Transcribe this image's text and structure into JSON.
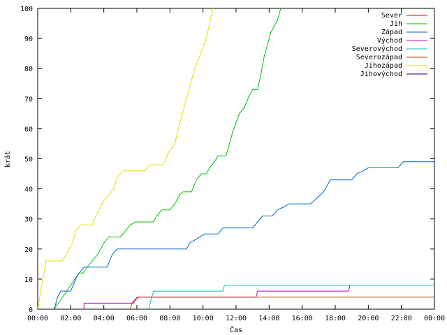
{
  "chart_data": {
    "type": "line",
    "xlabel": "Čas",
    "ylabel": "krát",
    "xlim": [
      0,
      24
    ],
    "ylim": [
      0,
      100
    ],
    "x_ticks": [
      {
        "v": 0,
        "label": "00:00"
      },
      {
        "v": 2,
        "label": "02:00"
      },
      {
        "v": 4,
        "label": "04:00"
      },
      {
        "v": 6,
        "label": "06:00"
      },
      {
        "v": 8,
        "label": "08:00"
      },
      {
        "v": 10,
        "label": "10:00"
      },
      {
        "v": 12,
        "label": "12:00"
      },
      {
        "v": 14,
        "label": "14:00"
      },
      {
        "v": 16,
        "label": "16:00"
      },
      {
        "v": 18,
        "label": "18:00"
      },
      {
        "v": 20,
        "label": "20:00"
      },
      {
        "v": 22,
        "label": "22:00"
      },
      {
        "v": 24,
        "label": "00:00"
      }
    ],
    "y_ticks": [
      0,
      10,
      20,
      30,
      40,
      50,
      60,
      70,
      80,
      90,
      100
    ],
    "legend_position": "top-right",
    "series": [
      {
        "name": "Sever",
        "color": "#ff0000",
        "points": []
      },
      {
        "name": "Jih",
        "color": "#00c000",
        "points": [
          [
            1.0,
            0
          ],
          [
            1.25,
            2
          ],
          [
            1.5,
            4
          ],
          [
            1.75,
            6
          ],
          [
            2.0,
            8
          ],
          [
            2.25,
            10
          ],
          [
            2.5,
            12
          ],
          [
            2.75,
            12
          ],
          [
            3.0,
            14
          ],
          [
            3.3,
            16
          ],
          [
            3.6,
            18
          ],
          [
            4.0,
            22
          ],
          [
            4.3,
            24
          ],
          [
            5.0,
            24
          ],
          [
            5.3,
            26
          ],
          [
            5.6,
            28
          ],
          [
            5.9,
            29
          ],
          [
            7.0,
            29
          ],
          [
            7.2,
            31
          ],
          [
            7.5,
            33
          ],
          [
            8.0,
            33
          ],
          [
            8.3,
            35
          ],
          [
            8.6,
            38
          ],
          [
            8.8,
            39
          ],
          [
            9.3,
            39
          ],
          [
            9.6,
            43
          ],
          [
            9.9,
            45
          ],
          [
            10.2,
            45
          ],
          [
            10.4,
            47
          ],
          [
            10.7,
            49
          ],
          [
            10.9,
            51
          ],
          [
            11.4,
            51
          ],
          [
            11.6,
            55
          ],
          [
            11.8,
            59
          ],
          [
            12.0,
            62
          ],
          [
            12.2,
            65
          ],
          [
            12.5,
            67
          ],
          [
            12.8,
            71
          ],
          [
            13.0,
            73
          ],
          [
            13.3,
            73
          ],
          [
            13.5,
            78
          ],
          [
            13.7,
            84
          ],
          [
            13.9,
            88
          ],
          [
            14.1,
            92
          ],
          [
            14.3,
            94
          ],
          [
            14.5,
            96
          ],
          [
            14.7,
            100
          ]
        ]
      },
      {
        "name": "Západ",
        "color": "#0066cc",
        "points": [
          [
            1.0,
            0
          ],
          [
            1.2,
            4
          ],
          [
            1.4,
            6
          ],
          [
            2.0,
            6
          ],
          [
            2.3,
            10
          ],
          [
            2.5,
            12
          ],
          [
            2.8,
            14
          ],
          [
            4.2,
            14
          ],
          [
            4.5,
            18
          ],
          [
            4.8,
            20
          ],
          [
            9.0,
            20
          ],
          [
            9.2,
            22
          ],
          [
            9.5,
            23
          ],
          [
            9.8,
            24
          ],
          [
            10.1,
            25
          ],
          [
            10.9,
            25
          ],
          [
            11.2,
            27
          ],
          [
            13.0,
            27
          ],
          [
            13.3,
            29
          ],
          [
            13.6,
            31
          ],
          [
            14.2,
            31
          ],
          [
            14.5,
            33
          ],
          [
            14.9,
            34
          ],
          [
            15.2,
            35
          ],
          [
            16.5,
            35
          ],
          [
            16.9,
            37
          ],
          [
            17.3,
            39
          ],
          [
            17.7,
            43
          ],
          [
            19.0,
            43
          ],
          [
            19.3,
            45
          ],
          [
            19.7,
            46
          ],
          [
            20.0,
            47
          ],
          [
            21.8,
            47
          ],
          [
            22.1,
            49
          ],
          [
            24.0,
            49
          ],
          [
            24.2,
            51
          ],
          [
            24.5,
            51
          ]
        ]
      },
      {
        "name": "Východ",
        "color": "#c000c0",
        "points": [
          [
            2.8,
            0
          ],
          [
            2.8,
            2
          ],
          [
            5.8,
            2
          ],
          [
            5.9,
            3
          ],
          [
            6.1,
            4
          ],
          [
            13.2,
            4
          ],
          [
            13.3,
            6
          ],
          [
            18.8,
            6
          ],
          [
            18.9,
            8
          ],
          [
            24.5,
            8
          ]
        ]
      },
      {
        "name": "Severovýchod",
        "color": "#00c0c0",
        "points": [
          [
            6.7,
            0
          ],
          [
            7.0,
            6
          ],
          [
            11.2,
            6
          ],
          [
            11.3,
            8
          ],
          [
            24.5,
            8
          ]
        ]
      },
      {
        "name": "Severozápad",
        "color": "#c04000",
        "points": [
          [
            5.6,
            0
          ],
          [
            5.7,
            2
          ],
          [
            6.0,
            4
          ],
          [
            24.5,
            4
          ]
        ]
      },
      {
        "name": "Jihozápad",
        "color": "#e0e000",
        "points": [
          [
            0.0,
            0
          ],
          [
            0.5,
            16
          ],
          [
            1.5,
            16
          ],
          [
            1.9,
            20
          ],
          [
            2.1,
            22
          ],
          [
            2.3,
            26
          ],
          [
            2.6,
            28
          ],
          [
            3.3,
            28
          ],
          [
            3.6,
            32
          ],
          [
            3.8,
            34
          ],
          [
            4.0,
            36
          ],
          [
            4.3,
            38
          ],
          [
            4.6,
            40
          ],
          [
            4.8,
            44
          ],
          [
            5.2,
            46
          ],
          [
            6.5,
            46
          ],
          [
            6.8,
            48
          ],
          [
            7.6,
            48
          ],
          [
            7.9,
            52
          ],
          [
            8.3,
            55
          ],
          [
            8.5,
            60
          ],
          [
            8.7,
            64
          ],
          [
            8.9,
            68
          ],
          [
            9.1,
            72
          ],
          [
            9.3,
            76
          ],
          [
            9.5,
            80
          ],
          [
            9.8,
            84
          ],
          [
            10.0,
            87
          ],
          [
            10.2,
            90
          ],
          [
            10.4,
            95
          ],
          [
            10.6,
            100
          ]
        ]
      },
      {
        "name": "Jihovýchod",
        "color": "#000080",
        "points": []
      }
    ]
  }
}
